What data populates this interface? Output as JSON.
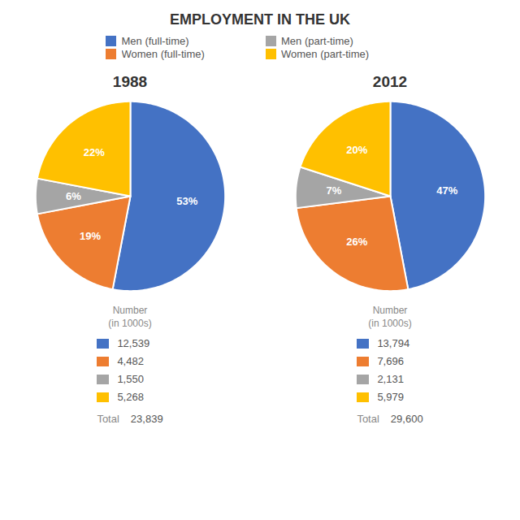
{
  "title": "EMPLOYMENT IN THE UK",
  "chart_data": [
    {
      "type": "pie",
      "title": "1988",
      "categories": [
        "Men (full-time)",
        "Women (full-time)",
        "Men (part-time)",
        "Women (part-time)"
      ],
      "values": [
        53,
        19,
        6,
        22
      ],
      "value_labels": [
        "53%",
        "19%",
        "6%",
        "22%"
      ],
      "data_labels": true,
      "colors": [
        "#4472C4",
        "#ED7D31",
        "#A5A5A5",
        "#FFC000"
      ],
      "legend": "top",
      "counts_title": "Number\n(in 1000s)",
      "counts": [
        12539,
        4482,
        1550,
        5268
      ],
      "count_labels": [
        "12,539",
        "4,482",
        "1,550",
        "5,268"
      ],
      "total_title": "Total",
      "total": 23839,
      "total_value_label": "23,839"
    },
    {
      "type": "pie",
      "title": "2012",
      "categories": [
        "Men (full-time)",
        "Women (full-time)",
        "Men (part-time)",
        "Women (part-time)"
      ],
      "values": [
        47,
        26,
        7,
        20
      ],
      "value_labels": [
        "47%",
        "26%",
        "7%",
        "20%"
      ],
      "data_labels": true,
      "colors": [
        "#4472C4",
        "#ED7D31",
        "#A5A5A5",
        "#FFC000"
      ],
      "counts_title": "Number\n(in 1000s)",
      "counts": [
        13794,
        7696,
        2131,
        5979
      ],
      "count_labels": [
        "13,794",
        "7,696",
        "2,131",
        "5,979"
      ],
      "total_title": "Total",
      "total": 29600,
      "total_value_label": "29,600"
    }
  ]
}
